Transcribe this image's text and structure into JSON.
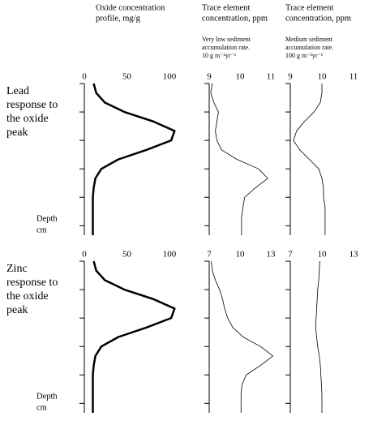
{
  "columns": [
    {
      "header": [
        "Oxide concentration",
        "profile, mg/g"
      ]
    },
    {
      "header": [
        "Trace element",
        "concentration, ppm"
      ],
      "subheader": [
        "Very low sediment",
        "accumulation rate.",
        "10 g m⁻²yr⁻¹"
      ]
    },
    {
      "header": [
        "Trace element",
        "concentration, ppm"
      ],
      "subheader": [
        "Medium sediment",
        "accumulation rate.",
        "100 g m⁻²yr⁻¹"
      ]
    }
  ],
  "rows": [
    {
      "label": [
        "Lead",
        "response to",
        "the oxide",
        "peak"
      ],
      "depth_label": [
        "Depth",
        "cm"
      ]
    },
    {
      "label": [
        "Zinc",
        "response to",
        "the oxide",
        "peak"
      ],
      "depth_label": [
        "Depth",
        "cm"
      ]
    }
  ],
  "chart_data": [
    {
      "type": "line",
      "orientation": "vertical",
      "color": "#000000",
      "line_width": 2.5,
      "xlim": [
        0,
        120
      ],
      "xticks": [
        0,
        50,
        100
      ],
      "categories": [
        null,
        null,
        null,
        null,
        null,
        null,
        null,
        null,
        null,
        null,
        null,
        null,
        null,
        null,
        null,
        null,
        null
      ],
      "values": [
        11,
        14,
        24,
        47,
        81,
        106,
        102,
        73,
        40,
        20,
        13,
        11,
        10,
        10,
        10,
        10,
        10
      ]
    },
    {
      "type": "line",
      "orientation": "vertical",
      "color": "#000000",
      "line_width": 0.8,
      "xlim": [
        9,
        11
      ],
      "xticks": [
        9,
        10,
        11
      ],
      "categories": [
        null,
        null,
        null,
        null,
        null,
        null,
        null,
        null,
        null,
        null,
        null,
        null,
        null,
        null,
        null,
        null,
        null
      ],
      "values": [
        9.1,
        9.05,
        9.15,
        9.3,
        9.25,
        9.2,
        9.25,
        9.4,
        9.9,
        10.6,
        10.9,
        10.5,
        10.15,
        10.1,
        10.05,
        10.05,
        10.05
      ]
    },
    {
      "type": "line",
      "orientation": "vertical",
      "color": "#000000",
      "line_width": 0.8,
      "xlim": [
        9,
        11
      ],
      "xticks": [
        9,
        10,
        11
      ],
      "categories": [
        null,
        null,
        null,
        null,
        null,
        null,
        null,
        null,
        null,
        null,
        null,
        null,
        null,
        null,
        null,
        null,
        null
      ],
      "values": [
        10,
        10,
        9.95,
        9.75,
        9.45,
        9.2,
        9.1,
        9.3,
        9.6,
        9.9,
        10,
        10.05,
        10.05,
        10.1,
        10.1,
        10.1,
        10.1
      ]
    },
    {
      "type": "line",
      "orientation": "vertical",
      "color": "#000000",
      "line_width": 2.5,
      "xlim": [
        0,
        120
      ],
      "xticks": [
        0,
        50,
        100
      ],
      "categories": [
        null,
        null,
        null,
        null,
        null,
        null,
        null,
        null,
        null,
        null,
        null,
        null,
        null,
        null,
        null,
        null,
        null
      ],
      "values": [
        11,
        14,
        24,
        47,
        81,
        106,
        102,
        73,
        40,
        20,
        13,
        11,
        10,
        10,
        10,
        10,
        10
      ]
    },
    {
      "type": "line",
      "orientation": "vertical",
      "color": "#000000",
      "line_width": 0.8,
      "xlim": [
        7,
        13
      ],
      "xticks": [
        7,
        10,
        13
      ],
      "categories": [
        null,
        null,
        null,
        null,
        null,
        null,
        null,
        null,
        null,
        null,
        null,
        null,
        null,
        null,
        null,
        null,
        null
      ],
      "values": [
        7.2,
        7.3,
        7.6,
        8.0,
        8.3,
        8.5,
        8.8,
        9.3,
        10.3,
        12.0,
        13.2,
        12.0,
        10.6,
        10.2,
        10.1,
        10.1,
        10.1
      ]
    },
    {
      "type": "line",
      "orientation": "vertical",
      "color": "#000000",
      "line_width": 0.8,
      "xlim": [
        7,
        13
      ],
      "xticks": [
        7,
        10,
        13
      ],
      "categories": [
        null,
        null,
        null,
        null,
        null,
        null,
        null,
        null,
        null,
        null,
        null,
        null,
        null,
        null,
        null,
        null,
        null
      ],
      "values": [
        9.8,
        9.75,
        9.7,
        9.6,
        9.55,
        9.5,
        9.45,
        9.4,
        9.5,
        9.6,
        9.75,
        9.85,
        9.9,
        9.95,
        10,
        10,
        10
      ]
    }
  ]
}
